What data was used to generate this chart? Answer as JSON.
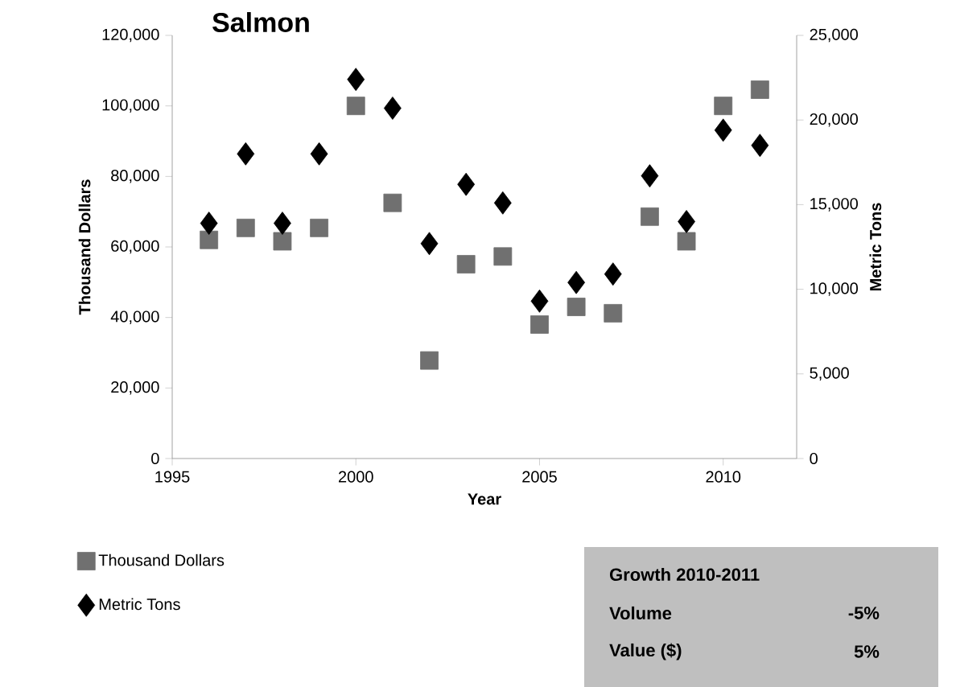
{
  "chart_data": {
    "type": "scatter",
    "title": "Salmon",
    "xlabel": "Year",
    "ylabel": "Thousand Dollars",
    "y2label": "Metric Tons",
    "x": [
      1996,
      1997,
      1998,
      1999,
      2000,
      2001,
      2002,
      2003,
      2004,
      2005,
      2006,
      2007,
      2008,
      2009,
      2010,
      2011
    ],
    "series": [
      {
        "name": "Thousand Dollars",
        "color": "#707070",
        "marker": "square",
        "values": [
          62000,
          65400,
          61600,
          65400,
          100000,
          72500,
          27800,
          55100,
          57300,
          38000,
          43000,
          41200,
          68600,
          61600,
          100000,
          104600
        ]
      },
      {
        "name": "Metric Tons",
        "color": "#000000",
        "marker": "diamond",
        "axis": "y2",
        "values": [
          13900,
          18000,
          13900,
          18000,
          22400,
          20700,
          12700,
          16200,
          15100,
          9300,
          10400,
          10900,
          16700,
          14000,
          19400,
          18500
        ]
      }
    ],
    "xlim": [
      1995,
      2012
    ],
    "xticks": [
      1995,
      2000,
      2005,
      2010
    ],
    "ylim": [
      0,
      120000
    ],
    "yticks": [
      {
        "value": 0,
        "label": "0"
      },
      {
        "value": 20000,
        "label": "20,000"
      },
      {
        "value": 40000,
        "label": "40,000"
      },
      {
        "value": 60000,
        "label": "60,000"
      },
      {
        "value": 80000,
        "label": "80,000"
      },
      {
        "value": 100000,
        "label": "100,000"
      },
      {
        "value": 120000,
        "label": "120,000"
      }
    ],
    "y2lim": [
      0,
      25000
    ],
    "y2ticks": [
      {
        "value": 0,
        "label": "0"
      },
      {
        "value": 5000,
        "label": "5,000"
      },
      {
        "value": 10000,
        "label": "10,000"
      },
      {
        "value": 15000,
        "label": "15,000"
      },
      {
        "value": 20000,
        "label": "20,000"
      },
      {
        "value": 25000,
        "label": "25,000"
      }
    ],
    "legend": "bottom left",
    "grid": false,
    "annotations": [
      "Growth 2010-2011",
      "Volume",
      "-5%",
      "Value ($)",
      "5%"
    ]
  }
}
